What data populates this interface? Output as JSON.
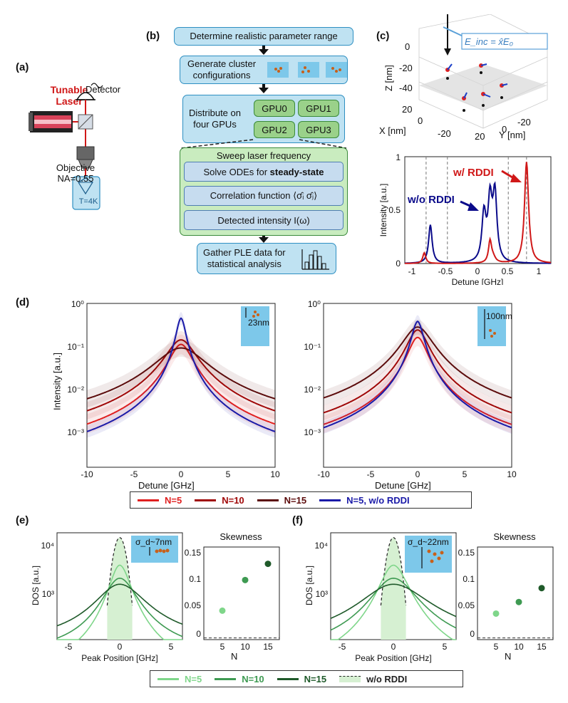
{
  "panel_labels": {
    "a": "(a)",
    "b": "(b)",
    "c": "(c)",
    "d": "(d)",
    "e": "(e)",
    "f": "(f)"
  },
  "setup": {
    "laser_label_1": "Tunable",
    "laser_label_2": "Laser",
    "detector": "Detector",
    "objective": "Objective",
    "na": "NA=0.55",
    "temperature": "T=4K"
  },
  "flowchart": {
    "step1": "Determine realistic parameter range",
    "step2_line1": "Generate cluster",
    "step2_line2": "configurations",
    "distribute_line1": "Distribute on",
    "distribute_line2": "four GPUs",
    "gpus": [
      "GPU0",
      "GPU1",
      "GPU2",
      "GPU3"
    ],
    "sweep_title": "Sweep laser frequency",
    "solve": "Solve ODEs for ",
    "solve_bold": "steady-state",
    "correlation": "Correlation function ⟨σ̂ᵢ σ̂ⱼ⟩",
    "detected": "Detected intensity I(ω)",
    "gather_line1": "Gather PLE data for",
    "gather_line2": "statistical analysis"
  },
  "panel_c_3d": {
    "field_label": "E_inc = x̂E₀",
    "z_label": "Z [nm]",
    "x_label": "X [nm]",
    "y_label": "Y [nm]",
    "z_ticks": [
      "0",
      "-20",
      "-40"
    ],
    "x_ticks": [
      "20",
      "0",
      "-20"
    ],
    "y_ticks": [
      "-20",
      "0",
      "20"
    ]
  },
  "panel_c_spectrum": {
    "ylabel": "Intensity [a.u.]",
    "xlabel": "Detune [GHz]",
    "with_rddi": "w/ RDDI",
    "without_rddi": "w/o RDDI",
    "x_ticks": [
      "-1",
      "-0.5",
      "0",
      "0.5",
      "1"
    ],
    "y_ticks": [
      "0",
      "0.5",
      "1"
    ],
    "colors": {
      "with": "#d01818",
      "without": "#0a0a8a"
    }
  },
  "panel_d": {
    "ylabel": "Intensity [a.u.]",
    "xlabel": "Detune [GHz]",
    "x_ticks": [
      "-10",
      "-5",
      "0",
      "5",
      "10"
    ],
    "y_ticks": [
      "10⁰",
      "10⁻¹",
      "10⁻²",
      "10⁻³"
    ],
    "inset_left": "23nm",
    "inset_right": "100nm",
    "legend": [
      {
        "label": "N=5",
        "color": "#e02020"
      },
      {
        "label": "N=10",
        "color": "#a00808"
      },
      {
        "label": "N=15",
        "color": "#5c0c0c"
      },
      {
        "label": "N=5, w/o RDDI",
        "color": "#1a1aa8"
      }
    ]
  },
  "panel_e": {
    "ylabel": "DOS [a.u.]",
    "xlabel": "Peak Position [GHz]",
    "x_ticks": [
      "-5",
      "0",
      "5"
    ],
    "y_ticks": [
      "10⁴",
      "10³"
    ],
    "inset_label": "σ_d~7nm",
    "skew_title": "Skewness",
    "skew_xlabel": "N",
    "skew_x_ticks": [
      "5",
      "10",
      "15"
    ],
    "skew_y_ticks": [
      "0.15",
      "0.1",
      "0.05",
      "0"
    ]
  },
  "panel_f": {
    "ylabel": "DOS [a.u.]",
    "xlabel": "Peak Position [GHz]",
    "x_ticks": [
      "-5",
      "0",
      "5"
    ],
    "y_ticks": [
      "10⁴",
      "10³"
    ],
    "inset_label": "σ_d~22nm",
    "skew_title": "Skewness",
    "skew_xlabel": "N",
    "skew_x_ticks": [
      "5",
      "10",
      "15"
    ],
    "skew_y_ticks": [
      "0.15",
      "0.1",
      "0.05",
      "0"
    ]
  },
  "legend_bottom": [
    {
      "label": "N=5",
      "color": "#7fd68a"
    },
    {
      "label": "N=10",
      "color": "#3e9a52"
    },
    {
      "label": "N=15",
      "color": "#1f5a2a"
    },
    {
      "label": "w/o RDDI",
      "color": "#222222"
    }
  ],
  "chart_data": [
    {
      "type": "line",
      "title": "",
      "xlabel": "Detune [GHz]",
      "ylabel": "Intensity [a.u.]",
      "xlim": [
        -1.2,
        1.2
      ],
      "ylim": [
        0,
        1
      ],
      "series": [
        {
          "name": "w/o RDDI",
          "x": [
            -1.2,
            -0.85,
            -0.75,
            -0.5,
            0,
            0.1,
            0.18,
            0.25,
            0.3,
            0.4,
            0.6,
            1.2
          ],
          "y": [
            0,
            0.02,
            0.38,
            0.02,
            0.2,
            0.5,
            0.62,
            0.72,
            0.55,
            0.1,
            0.01,
            0
          ]
        },
        {
          "name": "w/ RDDI",
          "x": [
            -1.2,
            -0.9,
            -0.85,
            -0.5,
            0,
            0.2,
            0.3,
            0.5,
            0.8,
            0.9,
            1.2
          ],
          "y": [
            0,
            0.05,
            0.1,
            0.02,
            0.04,
            0.2,
            0.08,
            0.05,
            0.95,
            0.3,
            0.03
          ]
        }
      ]
    },
    {
      "type": "line",
      "xlabel": "Detune [GHz]",
      "ylabel": "Intensity [a.u.]",
      "y_scale": "log",
      "xlim": [
        -10,
        10
      ],
      "ylim": [
        0.0005,
        1
      ],
      "x": [
        -10,
        -5,
        -2,
        0,
        2,
        5,
        10
      ],
      "series": [
        {
          "name": "N=5",
          "y": [
            0.002,
            0.006,
            0.03,
            0.12,
            0.03,
            0.006,
            0.002
          ]
        },
        {
          "name": "N=10",
          "y": [
            0.003,
            0.01,
            0.05,
            0.15,
            0.05,
            0.01,
            0.003
          ]
        },
        {
          "name": "N=15",
          "y": [
            0.006,
            0.02,
            0.06,
            0.1,
            0.06,
            0.02,
            0.006
          ]
        },
        {
          "name": "N=5, w/o RDDI",
          "y": [
            0.0008,
            0.004,
            0.03,
            0.45,
            0.03,
            0.004,
            0.0008
          ]
        }
      ]
    },
    {
      "type": "line",
      "xlabel": "Detune [GHz]",
      "y_scale": "log",
      "xlim": [
        -10,
        10
      ],
      "ylim": [
        0.0005,
        1
      ],
      "x": [
        -10,
        -5,
        -2,
        0,
        2,
        5,
        10
      ],
      "series": [
        {
          "name": "N=5",
          "y": [
            0.0015,
            0.005,
            0.025,
            0.16,
            0.025,
            0.005,
            0.0015
          ]
        },
        {
          "name": "N=10",
          "y": [
            0.002,
            0.008,
            0.04,
            0.25,
            0.04,
            0.008,
            0.002
          ]
        },
        {
          "name": "N=15",
          "y": [
            0.004,
            0.015,
            0.06,
            0.3,
            0.06,
            0.015,
            0.004
          ]
        },
        {
          "name": "N=5, w/o RDDI",
          "y": [
            0.0008,
            0.004,
            0.03,
            0.4,
            0.03,
            0.004,
            0.0008
          ]
        }
      ]
    },
    {
      "type": "scatter",
      "title": "Skewness",
      "xlabel": "N",
      "ylim": [
        0,
        0.15
      ],
      "x": [
        5,
        10,
        15
      ],
      "values": [
        0.05,
        0.103,
        0.131
      ]
    },
    {
      "type": "scatter",
      "title": "Skewness",
      "xlabel": "N",
      "ylim": [
        0,
        0.15
      ],
      "x": [
        5,
        10,
        15
      ],
      "values": [
        0.045,
        0.065,
        0.089
      ]
    }
  ]
}
